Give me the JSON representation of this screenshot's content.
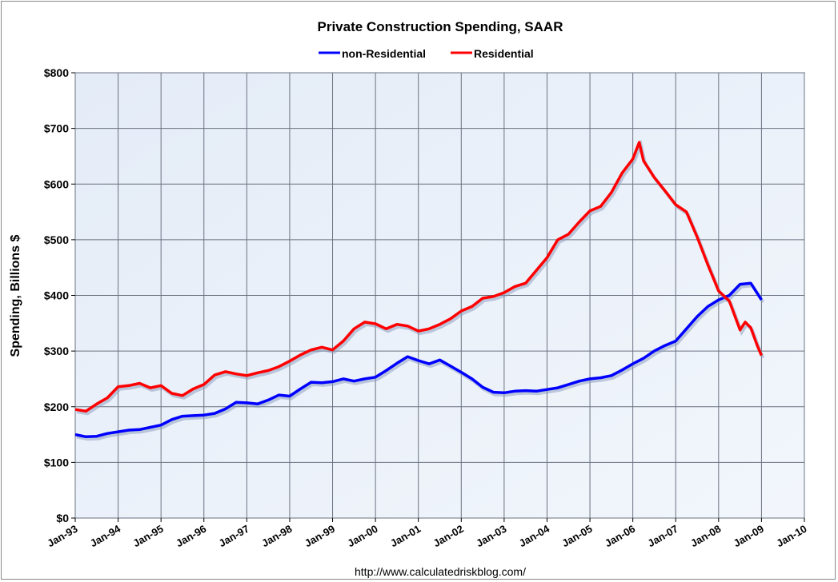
{
  "chart_data": {
    "type": "line",
    "title": "Private Construction Spending, SAAR",
    "xlabel": "",
    "ylabel": "Spending, Billions $",
    "xlim": [
      1993,
      2010
    ],
    "ylim": [
      0,
      800
    ],
    "grid": true,
    "legend_position": "top-center",
    "x_tick_labels": [
      "Jan-93",
      "Jan-94",
      "Jan-95",
      "Jan-96",
      "Jan-97",
      "Jan-98",
      "Jan-99",
      "Jan-00",
      "Jan-01",
      "Jan-02",
      "Jan-03",
      "Jan-04",
      "Jan-05",
      "Jan-06",
      "Jan-07",
      "Jan-08",
      "Jan-09",
      "Jan-10"
    ],
    "y_tick_labels": [
      "$0",
      "$100",
      "$200",
      "$300",
      "$400",
      "$500",
      "$600",
      "$700",
      "$800"
    ],
    "series": [
      {
        "name": "non-Residential",
        "color": "#0000ff",
        "x": [
          1993,
          1993.25,
          1993.5,
          1993.75,
          1994,
          1994.25,
          1994.5,
          1994.75,
          1995,
          1995.25,
          1995.5,
          1995.75,
          1996,
          1996.25,
          1996.5,
          1996.75,
          1997,
          1997.25,
          1997.5,
          1997.75,
          1998,
          1998.25,
          1998.5,
          1998.75,
          1999,
          1999.25,
          1999.5,
          1999.75,
          2000,
          2000.25,
          2000.5,
          2000.75,
          2001,
          2001.25,
          2001.5,
          2001.75,
          2002,
          2002.25,
          2002.5,
          2002.75,
          2003,
          2003.25,
          2003.5,
          2003.75,
          2004,
          2004.25,
          2004.5,
          2004.75,
          2005,
          2005.25,
          2005.5,
          2005.75,
          2006,
          2006.25,
          2006.5,
          2006.75,
          2007,
          2007.25,
          2007.5,
          2007.75,
          2008,
          2008.25,
          2008.5,
          2008.75,
          2009
        ],
        "values": [
          150,
          146,
          147,
          152,
          155,
          158,
          159,
          163,
          167,
          177,
          183,
          184,
          185,
          188,
          196,
          208,
          207,
          205,
          212,
          221,
          219,
          232,
          244,
          243,
          245,
          250,
          246,
          250,
          253,
          265,
          278,
          290,
          283,
          277,
          284,
          273,
          262,
          250,
          235,
          226,
          225,
          228,
          229,
          228,
          231,
          234,
          240,
          246,
          250,
          252,
          256,
          266,
          277,
          287,
          300,
          310,
          318,
          340,
          362,
          380,
          392,
          400,
          420,
          422,
          392
        ]
      },
      {
        "name": "Residential",
        "color": "#ff0000",
        "x": [
          1993,
          1993.25,
          1993.5,
          1993.75,
          1994,
          1994.25,
          1994.5,
          1994.75,
          1995,
          1995.25,
          1995.5,
          1995.75,
          1996,
          1996.25,
          1996.5,
          1996.75,
          1997,
          1997.25,
          1997.5,
          1997.75,
          1998,
          1998.25,
          1998.5,
          1998.75,
          1999,
          1999.25,
          1999.5,
          1999.75,
          2000,
          2000.25,
          2000.5,
          2000.75,
          2001,
          2001.25,
          2001.5,
          2001.75,
          2002,
          2002.25,
          2002.5,
          2002.75,
          2003,
          2003.25,
          2003.5,
          2003.75,
          2004,
          2004.25,
          2004.5,
          2004.75,
          2005,
          2005.25,
          2005.5,
          2005.75,
          2006,
          2006.15,
          2006.25,
          2006.5,
          2006.75,
          2007,
          2007.25,
          2007.5,
          2007.75,
          2008,
          2008.25,
          2008.5,
          2008.62,
          2008.75,
          2008.9,
          2009
        ],
        "values": [
          195,
          192,
          205,
          216,
          236,
          238,
          242,
          234,
          238,
          224,
          220,
          232,
          240,
          257,
          263,
          259,
          256,
          261,
          265,
          272,
          282,
          293,
          302,
          307,
          302,
          318,
          340,
          352,
          349,
          340,
          348,
          345,
          336,
          340,
          348,
          358,
          372,
          380,
          395,
          398,
          405,
          416,
          422,
          445,
          468,
          500,
          510,
          532,
          552,
          560,
          585,
          620,
          645,
          675,
          642,
          612,
          588,
          563,
          550,
          505,
          455,
          408,
          390,
          338,
          352,
          342,
          310,
          292
        ]
      }
    ]
  },
  "footer": {
    "url": "http://www.calculatedriskblog.com/"
  }
}
